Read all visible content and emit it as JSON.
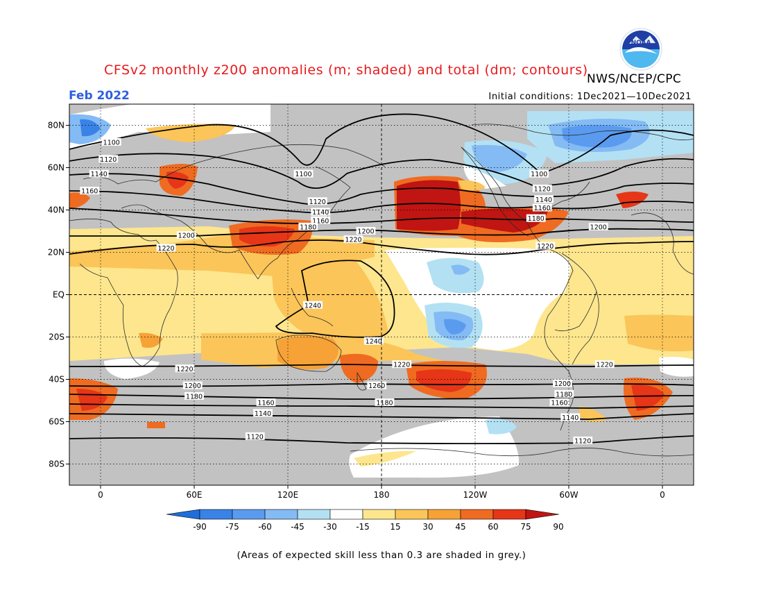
{
  "header": {
    "title": "CFSv2 monthly z200 anomalies (m; shaded) and total (dm; contours)",
    "agency": "NWS/NCEP/CPC",
    "logo_text": "NOAA",
    "month": "Feb 2022",
    "initial_conditions": "Initial conditions: 1Dec2021—10Dec2021"
  },
  "map": {
    "lon_ticks": [
      {
        "lon": 0,
        "label": "0"
      },
      {
        "lon": 60,
        "label": "60E"
      },
      {
        "lon": 120,
        "label": "120E"
      },
      {
        "lon": 180,
        "label": "180"
      },
      {
        "lon": 240,
        "label": "120W"
      },
      {
        "lon": 300,
        "label": "60W"
      },
      {
        "lon": 360,
        "label": "0"
      }
    ],
    "lat_ticks": [
      {
        "lat": 80,
        "label": "80N"
      },
      {
        "lat": 60,
        "label": "60N"
      },
      {
        "lat": 40,
        "label": "40N"
      },
      {
        "lat": 20,
        "label": "20N"
      },
      {
        "lat": 0,
        "label": "EQ"
      },
      {
        "lat": -20,
        "label": "20S"
      },
      {
        "lat": -40,
        "label": "40S"
      },
      {
        "lat": -60,
        "label": "60S"
      },
      {
        "lat": -80,
        "label": "80S"
      }
    ],
    "contour_labels": [
      {
        "text": "1100",
        "lon": 7,
        "lat": 72
      },
      {
        "text": "1120",
        "lon": 5,
        "lat": 64
      },
      {
        "text": "1140",
        "lon": -1,
        "lat": 57
      },
      {
        "text": "1160",
        "lon": -7,
        "lat": 49
      },
      {
        "text": "1200",
        "lon": 55,
        "lat": 28
      },
      {
        "text": "1220",
        "lon": 42,
        "lat": 22
      },
      {
        "text": "1100",
        "lon": 130,
        "lat": 57
      },
      {
        "text": "1120",
        "lon": 139,
        "lat": 44
      },
      {
        "text": "1140",
        "lon": 141,
        "lat": 39
      },
      {
        "text": "1160",
        "lon": 141,
        "lat": 35
      },
      {
        "text": "1180",
        "lon": 133,
        "lat": 32
      },
      {
        "text": "1200",
        "lon": 170,
        "lat": 30
      },
      {
        "text": "1220",
        "lon": 162,
        "lat": 26
      },
      {
        "text": "1240",
        "lon": 136,
        "lat": -5
      },
      {
        "text": "1240",
        "lon": 175,
        "lat": -22
      },
      {
        "text": "1100",
        "lon": 281,
        "lat": 57
      },
      {
        "text": "1120",
        "lon": 283,
        "lat": 50
      },
      {
        "text": "1140",
        "lon": 284,
        "lat": 45
      },
      {
        "text": "1160",
        "lon": 283,
        "lat": 41
      },
      {
        "text": "1180",
        "lon": 279,
        "lat": 36
      },
      {
        "text": "1200",
        "lon": 319,
        "lat": 32
      },
      {
        "text": "1220",
        "lon": 285,
        "lat": 23
      },
      {
        "text": "1220",
        "lon": 54,
        "lat": -35
      },
      {
        "text": "1200",
        "lon": 59,
        "lat": -43
      },
      {
        "text": "1180",
        "lon": 60,
        "lat": -48
      },
      {
        "text": "1160",
        "lon": 106,
        "lat": -51
      },
      {
        "text": "1140",
        "lon": 104,
        "lat": -56
      },
      {
        "text": "1120",
        "lon": 99,
        "lat": -67
      },
      {
        "text": "1220",
        "lon": 193,
        "lat": -33
      },
      {
        "text": "1260",
        "lon": 177,
        "lat": -43
      },
      {
        "text": "1180",
        "lon": 182,
        "lat": -51
      },
      {
        "text": "1200",
        "lon": 296,
        "lat": -42
      },
      {
        "text": "1180",
        "lon": 297,
        "lat": -47
      },
      {
        "text": "1160",
        "lon": 294,
        "lat": -51
      },
      {
        "text": "1140",
        "lon": 301,
        "lat": -58
      },
      {
        "text": "1120",
        "lon": 309,
        "lat": -69
      },
      {
        "text": "1220",
        "lon": 323,
        "lat": -33
      }
    ]
  },
  "colorbar": {
    "labels": [
      "-90",
      "-75",
      "-60",
      "-45",
      "-30",
      "-15",
      "15",
      "30",
      "45",
      "60",
      "75",
      "90"
    ],
    "colors": [
      "#1e6fdc",
      "#3a83e6",
      "#5a9bef",
      "#84bbf4",
      "#b3e1f3",
      "#ffffff",
      "#fde68e",
      "#fbc559",
      "#f6a237",
      "#ef6b21",
      "#e73518",
      "#c01512"
    ]
  },
  "footnote": "(Areas of expected skill less than 0.3 are shaded in grey.)"
}
